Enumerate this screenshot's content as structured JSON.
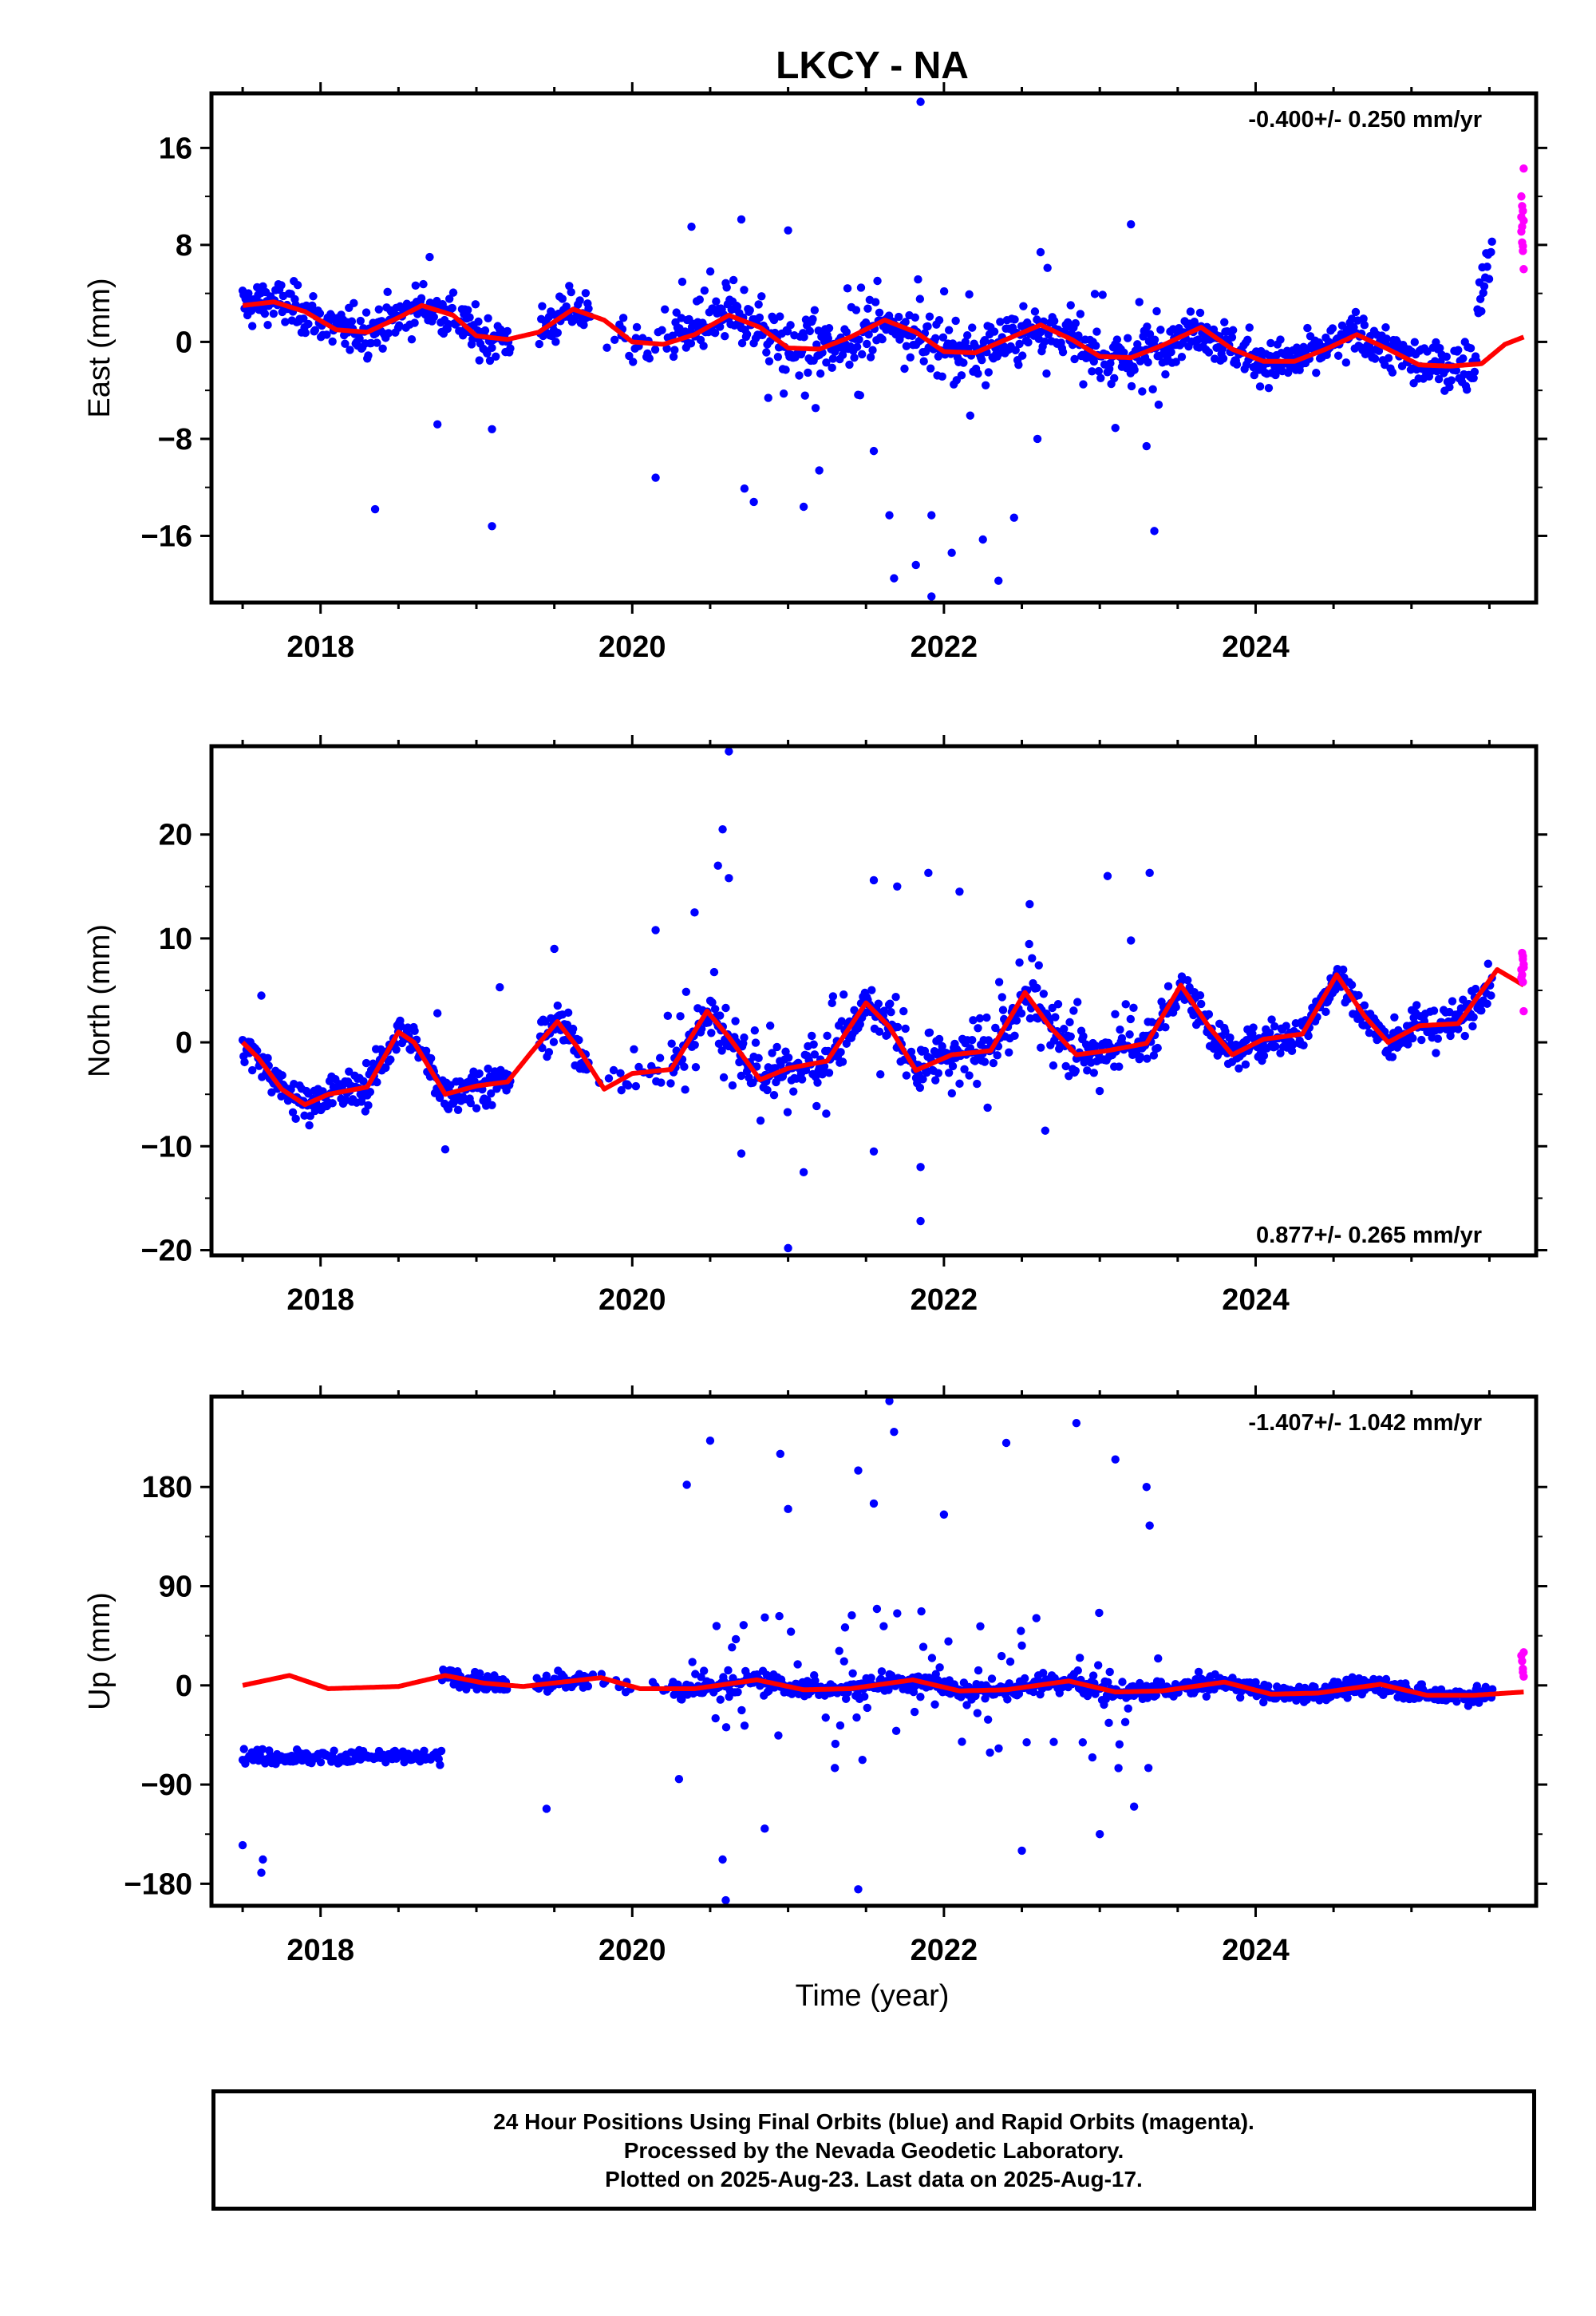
{
  "title": "LKCY - NA",
  "x_axis": {
    "label": "Time (year)",
    "ticks": [
      "2018",
      "2020",
      "2022",
      "2024"
    ]
  },
  "caption": {
    "line1": "24 Hour Positions Using Final Orbits (blue) and Rapid Orbits (magenta).",
    "line2": "Processed by the Nevada Geodetic Laboratory.",
    "line3": "Plotted on 2025-Aug-23. Last data on 2025-Aug-17."
  },
  "colors": {
    "final": "#0000ff",
    "rapid": "#ff00ff",
    "model": "#ff0000",
    "axis": "#000000"
  },
  "chart_data": [
    {
      "type": "scatter",
      "ylabel": "East (mm)",
      "rate": "-0.400+/- 0.250 mm/yr",
      "xlim": [
        2017.3,
        2025.8
      ],
      "ylim": [
        -21.5,
        20.5
      ],
      "yticks": [
        16,
        8,
        0,
        -8,
        -16
      ],
      "ytick_labels": [
        "16",
        "8",
        "0",
        "−8",
        "−16"
      ],
      "trend": {
        "start_year": 2017.5,
        "start_value": 3.1,
        "rate": -0.4
      },
      "seasonal": [
        {
          "x": 2017.5,
          "y": 3.0
        },
        {
          "x": 2017.7,
          "y": 3.3
        },
        {
          "x": 2017.9,
          "y": 2.5
        },
        {
          "x": 2018.1,
          "y": 1.0
        },
        {
          "x": 2018.3,
          "y": 0.8
        },
        {
          "x": 2018.5,
          "y": 2.0
        },
        {
          "x": 2018.65,
          "y": 3.0
        },
        {
          "x": 2018.85,
          "y": 2.2
        },
        {
          "x": 2019.0,
          "y": 0.5
        },
        {
          "x": 2019.2,
          "y": 0.2
        },
        {
          "x": 2019.4,
          "y": 0.8
        },
        {
          "x": 2019.62,
          "y": 2.7
        },
        {
          "x": 2019.82,
          "y": 1.8
        },
        {
          "x": 2020.0,
          "y": 0.0
        },
        {
          "x": 2020.2,
          "y": -0.2
        },
        {
          "x": 2020.4,
          "y": 0.6
        },
        {
          "x": 2020.62,
          "y": 2.2
        },
        {
          "x": 2020.82,
          "y": 1.2
        },
        {
          "x": 2021.0,
          "y": -0.5
        },
        {
          "x": 2021.2,
          "y": -0.6
        },
        {
          "x": 2021.4,
          "y": 0.4
        },
        {
          "x": 2021.62,
          "y": 1.8
        },
        {
          "x": 2021.82,
          "y": 0.8
        },
        {
          "x": 2022.0,
          "y": -0.8
        },
        {
          "x": 2022.2,
          "y": -0.9
        },
        {
          "x": 2022.4,
          "y": 0.2
        },
        {
          "x": 2022.62,
          "y": 1.4
        },
        {
          "x": 2022.82,
          "y": 0.2
        },
        {
          "x": 2023.0,
          "y": -1.2
        },
        {
          "x": 2023.2,
          "y": -1.3
        },
        {
          "x": 2023.4,
          "y": -0.3
        },
        {
          "x": 2023.65,
          "y": 1.2
        },
        {
          "x": 2023.85,
          "y": -0.6
        },
        {
          "x": 2024.05,
          "y": -1.6
        },
        {
          "x": 2024.25,
          "y": -1.6
        },
        {
          "x": 2024.45,
          "y": -0.6
        },
        {
          "x": 2024.65,
          "y": 0.6
        },
        {
          "x": 2024.85,
          "y": -0.6
        },
        {
          "x": 2025.05,
          "y": -1.9
        },
        {
          "x": 2025.25,
          "y": -2.0
        },
        {
          "x": 2025.45,
          "y": -1.8
        },
        {
          "x": 2025.6,
          "y": -0.2
        },
        {
          "x": 2025.72,
          "y": 0.4
        }
      ],
      "final_range": [
        2017.5,
        2025.52
      ],
      "rapid_range": [
        2025.53,
        2025.72
      ],
      "outliers": [
        {
          "x": 2018.35,
          "y": -13.8
        },
        {
          "x": 2019.1,
          "y": -15.2
        },
        {
          "x": 2019.1,
          "y": -7.2
        },
        {
          "x": 2020.15,
          "y": -11.2
        },
        {
          "x": 2020.38,
          "y": 9.5
        },
        {
          "x": 2020.7,
          "y": 10.1
        },
        {
          "x": 2020.72,
          "y": -12.1
        },
        {
          "x": 2020.78,
          "y": -13.2
        },
        {
          "x": 2021.1,
          "y": -13.6
        },
        {
          "x": 2021.0,
          "y": 9.2
        },
        {
          "x": 2021.2,
          "y": -10.6
        },
        {
          "x": 2021.65,
          "y": -14.3
        },
        {
          "x": 2021.68,
          "y": -19.5
        },
        {
          "x": 2021.85,
          "y": 19.8
        },
        {
          "x": 2021.82,
          "y": -18.4
        },
        {
          "x": 2021.92,
          "y": -21.0
        },
        {
          "x": 2021.92,
          "y": -14.3
        },
        {
          "x": 2022.05,
          "y": -17.4
        },
        {
          "x": 2022.25,
          "y": -16.3
        },
        {
          "x": 2022.35,
          "y": -19.7
        },
        {
          "x": 2022.45,
          "y": -14.5
        },
        {
          "x": 2023.1,
          "y": -7.1
        },
        {
          "x": 2023.2,
          "y": 9.7
        },
        {
          "x": 2023.35,
          "y": -15.6
        },
        {
          "x": 2023.3,
          "y": -8.6
        },
        {
          "x": 2022.62,
          "y": 7.4
        },
        {
          "x": 2018.7,
          "y": 7.0
        },
        {
          "x": 2018.75,
          "y": -6.8
        },
        {
          "x": 2021.55,
          "y": -9.0
        },
        {
          "x": 2022.6,
          "y": -8.0
        }
      ],
      "rapid_values": [
        6.0,
        7.5,
        8.2,
        9.1,
        10.0,
        10.8,
        11.2,
        12.0,
        14.3,
        7.9,
        9.5,
        10.3
      ]
    },
    {
      "type": "scatter",
      "ylabel": "North (mm)",
      "rate": "0.877+/- 0.265 mm/yr",
      "xlim": [
        2017.3,
        2025.8
      ],
      "ylim": [
        -20.5,
        28.5
      ],
      "yticks": [
        20,
        10,
        0,
        -10,
        -20
      ],
      "ytick_labels": [
        "20",
        "10",
        "0",
        "−10",
        "−20"
      ],
      "trend": {
        "start_year": 2017.5,
        "start_value": -3.0,
        "rate": 0.877
      },
      "seasonal": [
        {
          "x": 2017.5,
          "y": 0.0
        },
        {
          "x": 2017.6,
          "y": -1.5
        },
        {
          "x": 2017.75,
          "y": -4.5
        },
        {
          "x": 2017.9,
          "y": -6.0
        },
        {
          "x": 2018.05,
          "y": -5.0
        },
        {
          "x": 2018.3,
          "y": -4.3
        },
        {
          "x": 2018.5,
          "y": 1.0
        },
        {
          "x": 2018.6,
          "y": 0.0
        },
        {
          "x": 2018.8,
          "y": -5.0
        },
        {
          "x": 2019.0,
          "y": -4.2
        },
        {
          "x": 2019.2,
          "y": -3.8
        },
        {
          "x": 2019.35,
          "y": -1.0
        },
        {
          "x": 2019.52,
          "y": 2.0
        },
        {
          "x": 2019.65,
          "y": -0.5
        },
        {
          "x": 2019.82,
          "y": -4.5
        },
        {
          "x": 2020.0,
          "y": -3.0
        },
        {
          "x": 2020.25,
          "y": -2.6
        },
        {
          "x": 2020.48,
          "y": 3.0
        },
        {
          "x": 2020.62,
          "y": 0.5
        },
        {
          "x": 2020.82,
          "y": -3.6
        },
        {
          "x": 2021.0,
          "y": -2.5
        },
        {
          "x": 2021.25,
          "y": -1.8
        },
        {
          "x": 2021.5,
          "y": 3.8
        },
        {
          "x": 2021.65,
          "y": 1.5
        },
        {
          "x": 2021.82,
          "y": -2.7
        },
        {
          "x": 2022.05,
          "y": -1.2
        },
        {
          "x": 2022.3,
          "y": -0.8
        },
        {
          "x": 2022.52,
          "y": 4.8
        },
        {
          "x": 2022.68,
          "y": 1.5
        },
        {
          "x": 2022.85,
          "y": -1.2
        },
        {
          "x": 2023.05,
          "y": -0.8
        },
        {
          "x": 2023.3,
          "y": -0.1
        },
        {
          "x": 2023.52,
          "y": 5.5
        },
        {
          "x": 2023.7,
          "y": 1.5
        },
        {
          "x": 2023.85,
          "y": -1.2
        },
        {
          "x": 2024.05,
          "y": 0.3
        },
        {
          "x": 2024.3,
          "y": 0.8
        },
        {
          "x": 2024.52,
          "y": 6.5
        },
        {
          "x": 2024.7,
          "y": 2.5
        },
        {
          "x": 2024.85,
          "y": 0.0
        },
        {
          "x": 2025.05,
          "y": 1.6
        },
        {
          "x": 2025.3,
          "y": 1.8
        },
        {
          "x": 2025.55,
          "y": 7.0
        },
        {
          "x": 2025.72,
          "y": 5.5
        }
      ],
      "final_range": [
        2017.5,
        2025.52
      ],
      "rapid_range": [
        2025.53,
        2025.72
      ],
      "outliers": [
        {
          "x": 2020.62,
          "y": 28.0
        },
        {
          "x": 2020.58,
          "y": 20.5
        },
        {
          "x": 2020.55,
          "y": 17.0
        },
        {
          "x": 2020.62,
          "y": 15.8
        },
        {
          "x": 2020.4,
          "y": 12.5
        },
        {
          "x": 2020.15,
          "y": 10.8
        },
        {
          "x": 2021.55,
          "y": 15.6
        },
        {
          "x": 2021.7,
          "y": 15.0
        },
        {
          "x": 2021.9,
          "y": 16.3
        },
        {
          "x": 2022.1,
          "y": 14.5
        },
        {
          "x": 2022.55,
          "y": 13.3
        },
        {
          "x": 2023.05,
          "y": 16.0
        },
        {
          "x": 2023.32,
          "y": 16.3
        },
        {
          "x": 2023.2,
          "y": 9.8
        },
        {
          "x": 2021.0,
          "y": -19.8
        },
        {
          "x": 2021.1,
          "y": -12.5
        },
        {
          "x": 2021.85,
          "y": -17.2
        },
        {
          "x": 2021.55,
          "y": -10.5
        },
        {
          "x": 2021.85,
          "y": -12.0
        },
        {
          "x": 2020.7,
          "y": -10.7
        },
        {
          "x": 2018.8,
          "y": -10.3
        },
        {
          "x": 2019.5,
          "y": 9.0
        },
        {
          "x": 2019.15,
          "y": 5.3
        },
        {
          "x": 2018.75,
          "y": 2.8
        },
        {
          "x": 2022.65,
          "y": -8.5
        },
        {
          "x": 2017.62,
          "y": 4.5
        }
      ],
      "rapid_values": [
        3.0,
        5.8,
        6.5,
        7.0,
        7.5,
        8.0,
        8.6,
        6.2,
        7.2,
        8.3
      ]
    },
    {
      "type": "scatter",
      "ylabel": "Up (mm)",
      "rate": "-1.407+/- 1.042 mm/yr",
      "xlim": [
        2017.3,
        2025.8
      ],
      "ylim": [
        -200,
        262
      ],
      "yticks": [
        180,
        90,
        0,
        -90,
        -180
      ],
      "ytick_labels": [
        "180",
        "90",
        "0",
        "−90",
        "−180"
      ],
      "trend": {
        "start_year": 2017.5,
        "start_value": 7.0,
        "rate": -1.407
      },
      "seasonal": [
        {
          "x": 2017.5,
          "y": 0.0
        },
        {
          "x": 2017.8,
          "y": 9.0
        },
        {
          "x": 2018.05,
          "y": -3.0
        },
        {
          "x": 2018.5,
          "y": -1.0
        },
        {
          "x": 2018.8,
          "y": 9.0
        },
        {
          "x": 2019.05,
          "y": 2.0
        },
        {
          "x": 2019.3,
          "y": -1.0
        },
        {
          "x": 2019.8,
          "y": 7.0
        },
        {
          "x": 2020.05,
          "y": -3.0
        },
        {
          "x": 2020.4,
          "y": -3.0
        },
        {
          "x": 2020.8,
          "y": 5.0
        },
        {
          "x": 2021.1,
          "y": -4.0
        },
        {
          "x": 2021.4,
          "y": -3.0
        },
        {
          "x": 2021.8,
          "y": 5.0
        },
        {
          "x": 2022.1,
          "y": -5.0
        },
        {
          "x": 2022.4,
          "y": -4.0
        },
        {
          "x": 2022.8,
          "y": 4.0
        },
        {
          "x": 2023.1,
          "y": -6.0
        },
        {
          "x": 2023.4,
          "y": -5.0
        },
        {
          "x": 2023.8,
          "y": 3.0
        },
        {
          "x": 2024.1,
          "y": -8.0
        },
        {
          "x": 2024.4,
          "y": -7.0
        },
        {
          "x": 2024.8,
          "y": 1.0
        },
        {
          "x": 2025.1,
          "y": -9.0
        },
        {
          "x": 2025.4,
          "y": -9.0
        },
        {
          "x": 2025.72,
          "y": -6.0
        }
      ],
      "offset_segment": {
        "x_start": 2017.5,
        "x_end": 2018.78,
        "level": -65
      },
      "final_range": [
        2018.78,
        2025.52
      ],
      "rapid_range": [
        2025.53,
        2025.72
      ],
      "outliers": [
        {
          "x": 2017.5,
          "y": -145
        },
        {
          "x": 2017.62,
          "y": -170
        },
        {
          "x": 2017.63,
          "y": -158
        },
        {
          "x": 2019.45,
          "y": -112
        },
        {
          "x": 2020.35,
          "y": 182
        },
        {
          "x": 2020.5,
          "y": 222
        },
        {
          "x": 2020.58,
          "y": -158
        },
        {
          "x": 2020.6,
          "y": -195
        },
        {
          "x": 2020.85,
          "y": -130
        },
        {
          "x": 2020.95,
          "y": 210
        },
        {
          "x": 2021.3,
          "y": -75
        },
        {
          "x": 2021.45,
          "y": -185
        },
        {
          "x": 2021.65,
          "y": 258
        },
        {
          "x": 2021.68,
          "y": 230
        },
        {
          "x": 2021.55,
          "y": 165
        },
        {
          "x": 2021.45,
          "y": 195
        },
        {
          "x": 2022.4,
          "y": 220
        },
        {
          "x": 2022.5,
          "y": -150
        },
        {
          "x": 2022.85,
          "y": 238
        },
        {
          "x": 2023.1,
          "y": 205
        },
        {
          "x": 2023.3,
          "y": 180
        },
        {
          "x": 2023.32,
          "y": 145
        },
        {
          "x": 2023.0,
          "y": -135
        },
        {
          "x": 2023.22,
          "y": -110
        },
        {
          "x": 2021.0,
          "y": 160
        },
        {
          "x": 2020.3,
          "y": -85
        },
        {
          "x": 2022.0,
          "y": 155
        }
      ],
      "rapid_values": [
        8.0,
        15.0,
        22.0,
        27.0,
        30.0,
        12.0
      ]
    }
  ]
}
